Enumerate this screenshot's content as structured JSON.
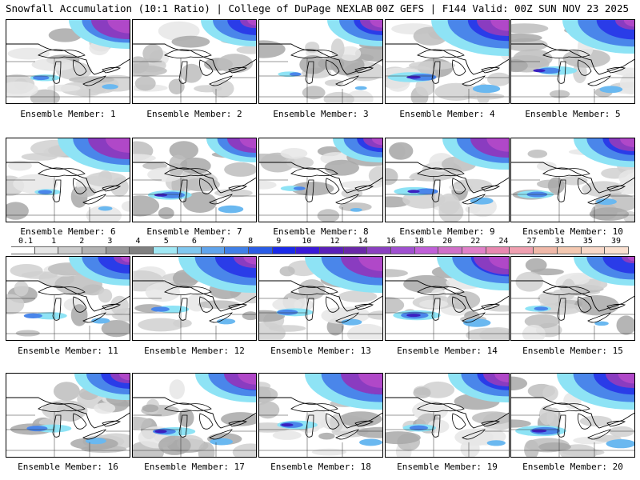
{
  "header": {
    "left": "Snowfall Accumulation (10:1 Ratio) | College of DuPage NEXLAB",
    "right": "00Z GEFS | F144 Valid: 00Z SUN NOV 23 2025"
  },
  "members": [
    {
      "label": "Ensemble Member: 1",
      "purple": 0.9,
      "blue": 0.6,
      "streak": 0.3
    },
    {
      "label": "Ensemble Member: 2",
      "purple": 0.2,
      "blue": 0.5,
      "streak": 0.0
    },
    {
      "label": "Ensemble Member: 3",
      "purple": 0.4,
      "blue": 0.5,
      "streak": 0.1
    },
    {
      "label": "Ensemble Member: 4",
      "purple": 0.7,
      "blue": 0.9,
      "streak": 0.8
    },
    {
      "label": "Ensemble Member: 5",
      "purple": 0.3,
      "blue": 0.8,
      "streak": 0.6
    },
    {
      "label": "Ensemble Member: 6",
      "purple": 1.0,
      "blue": 0.8,
      "streak": 0.2
    },
    {
      "label": "Ensemble Member: 7",
      "purple": 0.6,
      "blue": 0.4,
      "streak": 0.7
    },
    {
      "label": "Ensemble Member: 8",
      "purple": 0.3,
      "blue": 0.4,
      "streak": 0.1
    },
    {
      "label": "Ensemble Member: 9",
      "purple": 0.9,
      "blue": 0.7,
      "streak": 0.6
    },
    {
      "label": "Ensemble Member: 10",
      "purple": 0.5,
      "blue": 0.6,
      "streak": 0.5
    },
    {
      "label": "Ensemble Member: 11",
      "purple": 0.2,
      "blue": 0.6,
      "streak": 0.4
    },
    {
      "label": "Ensemble Member: 12",
      "purple": 0.4,
      "blue": 0.9,
      "streak": 0.4
    },
    {
      "label": "Ensemble Member: 13",
      "purple": 1.0,
      "blue": 0.9,
      "streak": 0.5
    },
    {
      "label": "Ensemble Member: 14",
      "purple": 0.8,
      "blue": 0.8,
      "streak": 0.8
    },
    {
      "label": "Ensemble Member: 15",
      "purple": 0.1,
      "blue": 0.6,
      "streak": 0.2
    },
    {
      "label": "Ensemble Member: 16",
      "purple": 0.3,
      "blue": 0.5,
      "streak": 0.5
    },
    {
      "label": "Ensemble Member: 17",
      "purple": 0.7,
      "blue": 0.6,
      "streak": 0.6
    },
    {
      "label": "Ensemble Member: 18",
      "purple": 1.0,
      "blue": 0.9,
      "streak": 0.6
    },
    {
      "label": "Ensemble Member: 19",
      "purple": 0.5,
      "blue": 0.6,
      "streak": 0.4
    },
    {
      "label": "Ensemble Member: 20",
      "purple": 0.6,
      "blue": 0.9,
      "streak": 0.9
    }
  ],
  "colorbar": {
    "labels": [
      "0.1",
      "1",
      "2",
      "3",
      "4",
      "5",
      "6",
      "7",
      "8",
      "9",
      "10",
      "12",
      "14",
      "16",
      "18",
      "20",
      "22",
      "24",
      "27",
      "31",
      "35",
      "39"
    ],
    "colors": [
      "#ffffff",
      "#e6e6e6",
      "#cccccc",
      "#b3b3b3",
      "#999999",
      "#808080",
      "#a0e8f5",
      "#80c8f0",
      "#60a4ec",
      "#4080e8",
      "#2a5ce6",
      "#1a2ae8",
      "#3a1ad8",
      "#5a20b8",
      "#6a28a8",
      "#8a40c0",
      "#a050d0",
      "#c060d8",
      "#d070c8",
      "#e080c8",
      "#e888b0",
      "#f0a0b0",
      "#f0b8a8",
      "#f4c8b0",
      "#f8d8c8",
      "#fae0d0"
    ]
  }
}
